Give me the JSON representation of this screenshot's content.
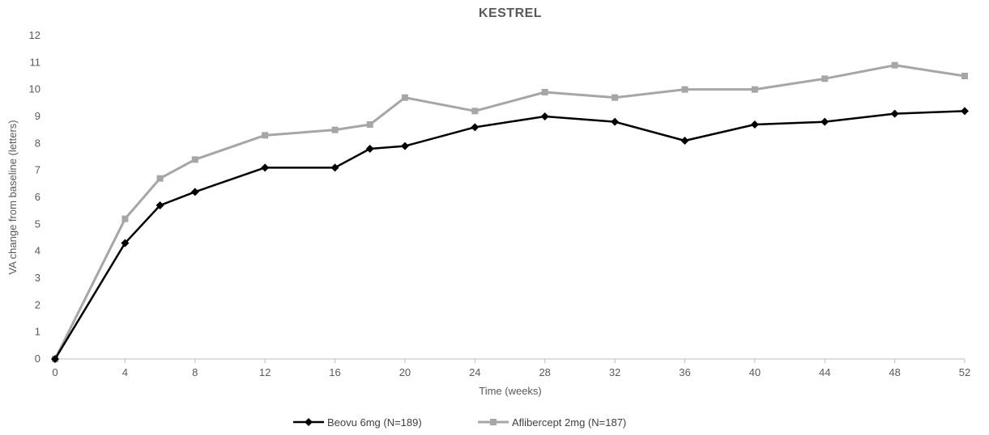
{
  "chart_data": {
    "type": "line",
    "title": "KESTREL",
    "xlabel": "Time (weeks)",
    "ylabel": "VA change from baseline (letters)",
    "ylim": [
      0,
      12
    ],
    "yticks": [
      0,
      1,
      2,
      3,
      4,
      5,
      6,
      7,
      8,
      9,
      10,
      11,
      12
    ],
    "xticks": [
      0,
      4,
      8,
      12,
      16,
      20,
      24,
      28,
      32,
      36,
      40,
      44,
      48,
      52
    ],
    "grid": false,
    "legend_position": "bottom",
    "series": [
      {
        "name": "Beovu 6mg (N=189)",
        "color": "#000000",
        "marker": "diamond",
        "x": [
          0,
          4,
          6,
          8,
          12,
          16,
          18,
          20,
          24,
          28,
          32,
          36,
          40,
          44,
          48,
          52
        ],
        "y": [
          0,
          4.3,
          5.7,
          6.2,
          7.1,
          7.1,
          7.8,
          7.9,
          8.6,
          9.0,
          8.8,
          8.1,
          8.7,
          8.8,
          9.1,
          9.2
        ]
      },
      {
        "name": "Aflibercept 2mg (N=187)",
        "color": "#a6a6a6",
        "marker": "square",
        "x": [
          0,
          4,
          6,
          8,
          12,
          16,
          18,
          20,
          24,
          28,
          32,
          36,
          40,
          44,
          48,
          52
        ],
        "y": [
          0,
          5.2,
          6.7,
          7.4,
          8.3,
          8.5,
          8.7,
          9.7,
          9.2,
          9.9,
          9.7,
          10.0,
          10.0,
          10.4,
          10.9,
          10.5
        ]
      }
    ]
  }
}
